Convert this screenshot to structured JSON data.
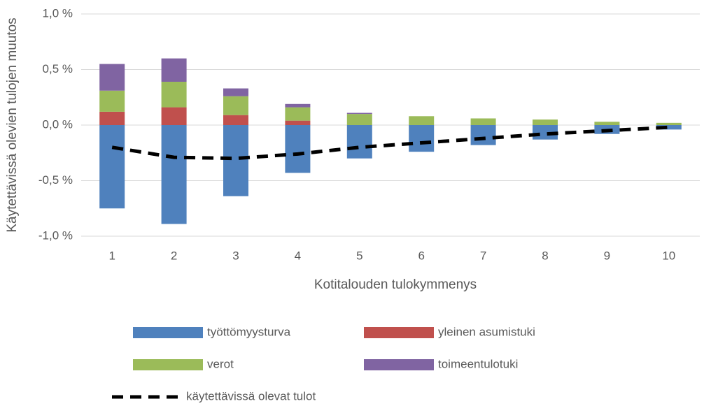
{
  "chart_data": {
    "type": "bar",
    "stacked": true,
    "x_label": "Kotitalouden tulokymmenys",
    "y_label": "Käytettävissä olevien tulojen muutos",
    "categories": [
      "1",
      "2",
      "3",
      "4",
      "5",
      "6",
      "7",
      "8",
      "9",
      "10"
    ],
    "ylim": [
      -1.0,
      1.0
    ],
    "yticks": [
      {
        "value": -1.0,
        "label": "-1,0 %"
      },
      {
        "value": -0.5,
        "label": "-0,5 %"
      },
      {
        "value": 0,
        "label": "0,0 %"
      },
      {
        "value": 0.5,
        "label": "0,5 %"
      },
      {
        "value": 1.0,
        "label": "1,0 %"
      }
    ],
    "grid": true,
    "series": [
      {
        "name": "työttömyysturva",
        "color": "#4f81bd",
        "values": [
          -0.75,
          -0.89,
          -0.64,
          -0.43,
          -0.3,
          -0.24,
          -0.18,
          -0.13,
          -0.08,
          -0.04
        ]
      },
      {
        "name": "yleinen asumistuki",
        "color": "#c0504d",
        "values": [
          0.12,
          0.16,
          0.09,
          0.04,
          0,
          0,
          0,
          0,
          0,
          0
        ]
      },
      {
        "name": "verot",
        "color": "#9bbb59",
        "values": [
          0.19,
          0.23,
          0.17,
          0.12,
          0.1,
          0.08,
          0.06,
          0.05,
          0.03,
          0.02
        ]
      },
      {
        "name": "toimeentulotuki",
        "color": "#8064a2",
        "values": [
          0.24,
          0.21,
          0.07,
          0.03,
          0.01,
          0,
          0,
          0,
          0,
          0
        ]
      },
      {
        "name": "käytettävissä olevat tulot",
        "type": "line",
        "color": "#000000",
        "dashed": true,
        "values": [
          -0.2,
          -0.29,
          -0.3,
          -0.26,
          -0.2,
          -0.16,
          -0.12,
          -0.08,
          -0.05,
          -0.02
        ]
      }
    ]
  }
}
